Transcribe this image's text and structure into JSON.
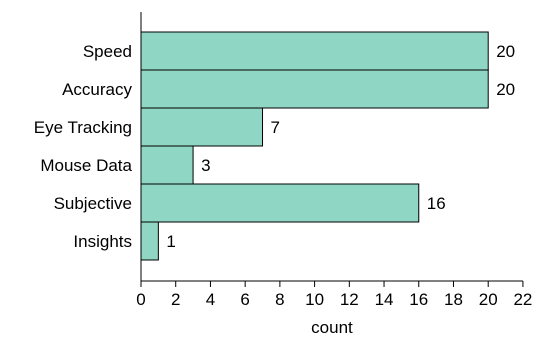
{
  "chart_data": {
    "type": "bar",
    "orientation": "horizontal",
    "categories": [
      "Speed",
      "Accuracy",
      "Eye Tracking",
      "Mouse Data",
      "Subjective",
      "Insights"
    ],
    "values": [
      20,
      20,
      7,
      3,
      16,
      1
    ],
    "title": "",
    "xlabel": "count",
    "ylabel": "",
    "xlim": [
      0,
      22
    ],
    "xticks": [
      0,
      2,
      4,
      6,
      8,
      10,
      12,
      14,
      16,
      18,
      20,
      22
    ],
    "grid": false,
    "legend": "none",
    "data_labels": true,
    "colors": {
      "bar_fill": "#8fd6c4",
      "bar_stroke": "#000000",
      "axis": "#000000",
      "text": "#000000"
    }
  }
}
